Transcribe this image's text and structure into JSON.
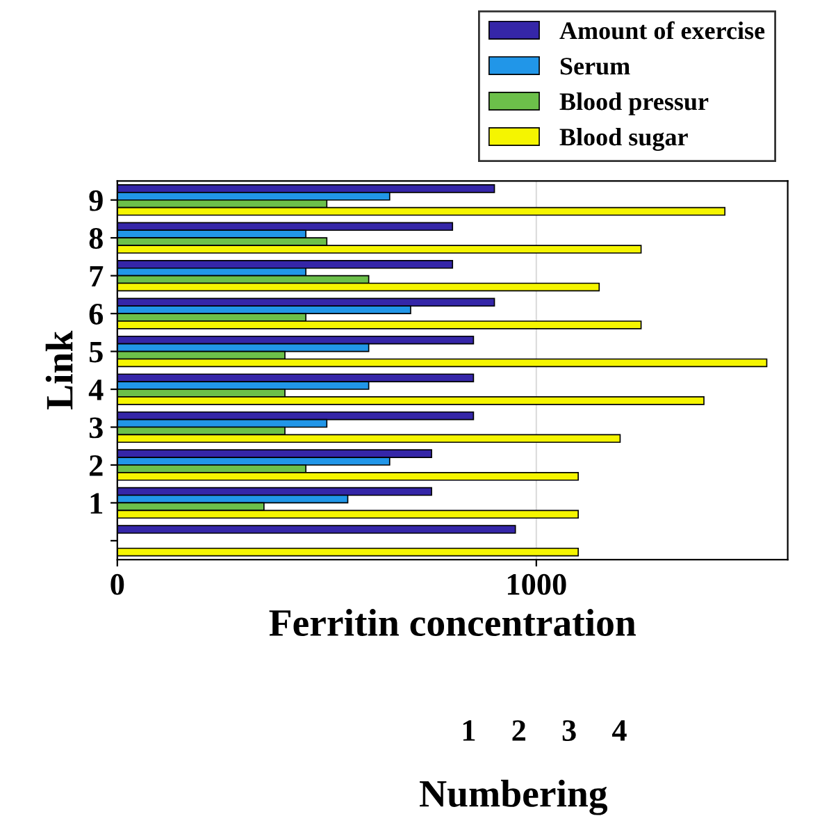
{
  "chart_data": {
    "type": "bar",
    "orientation": "horizontal",
    "xlabel": "Ferritin concentration",
    "ylabel": "Link",
    "categories": [
      "9",
      "8",
      "7",
      "6",
      "5",
      "4",
      "3",
      "2",
      "1",
      null
    ],
    "series": [
      {
        "name": "Amount of exercise",
        "color": "#3526a8",
        "values": [
          900,
          800,
          800,
          900,
          850,
          850,
          850,
          750,
          750,
          950
        ]
      },
      {
        "name": "Serum",
        "color": "#2196e8",
        "values": [
          650,
          450,
          450,
          700,
          600,
          600,
          500,
          650,
          550,
          null
        ]
      },
      {
        "name": "Blood pressur",
        "color": "#6cc04a",
        "values": [
          500,
          500,
          600,
          450,
          400,
          400,
          400,
          450,
          350,
          null
        ]
      },
      {
        "name": "Blood sugar",
        "color": "#f5f500",
        "values": [
          1450,
          1250,
          1150,
          1250,
          1550,
          1400,
          1200,
          1100,
          1100,
          1100
        ]
      }
    ],
    "xlim": [
      0,
      1600
    ],
    "xticks": [
      0,
      1000
    ],
    "legend": "top right",
    "grid": "x",
    "annotations": [
      "Numbering",
      "1",
      "2",
      "3",
      "4"
    ]
  }
}
